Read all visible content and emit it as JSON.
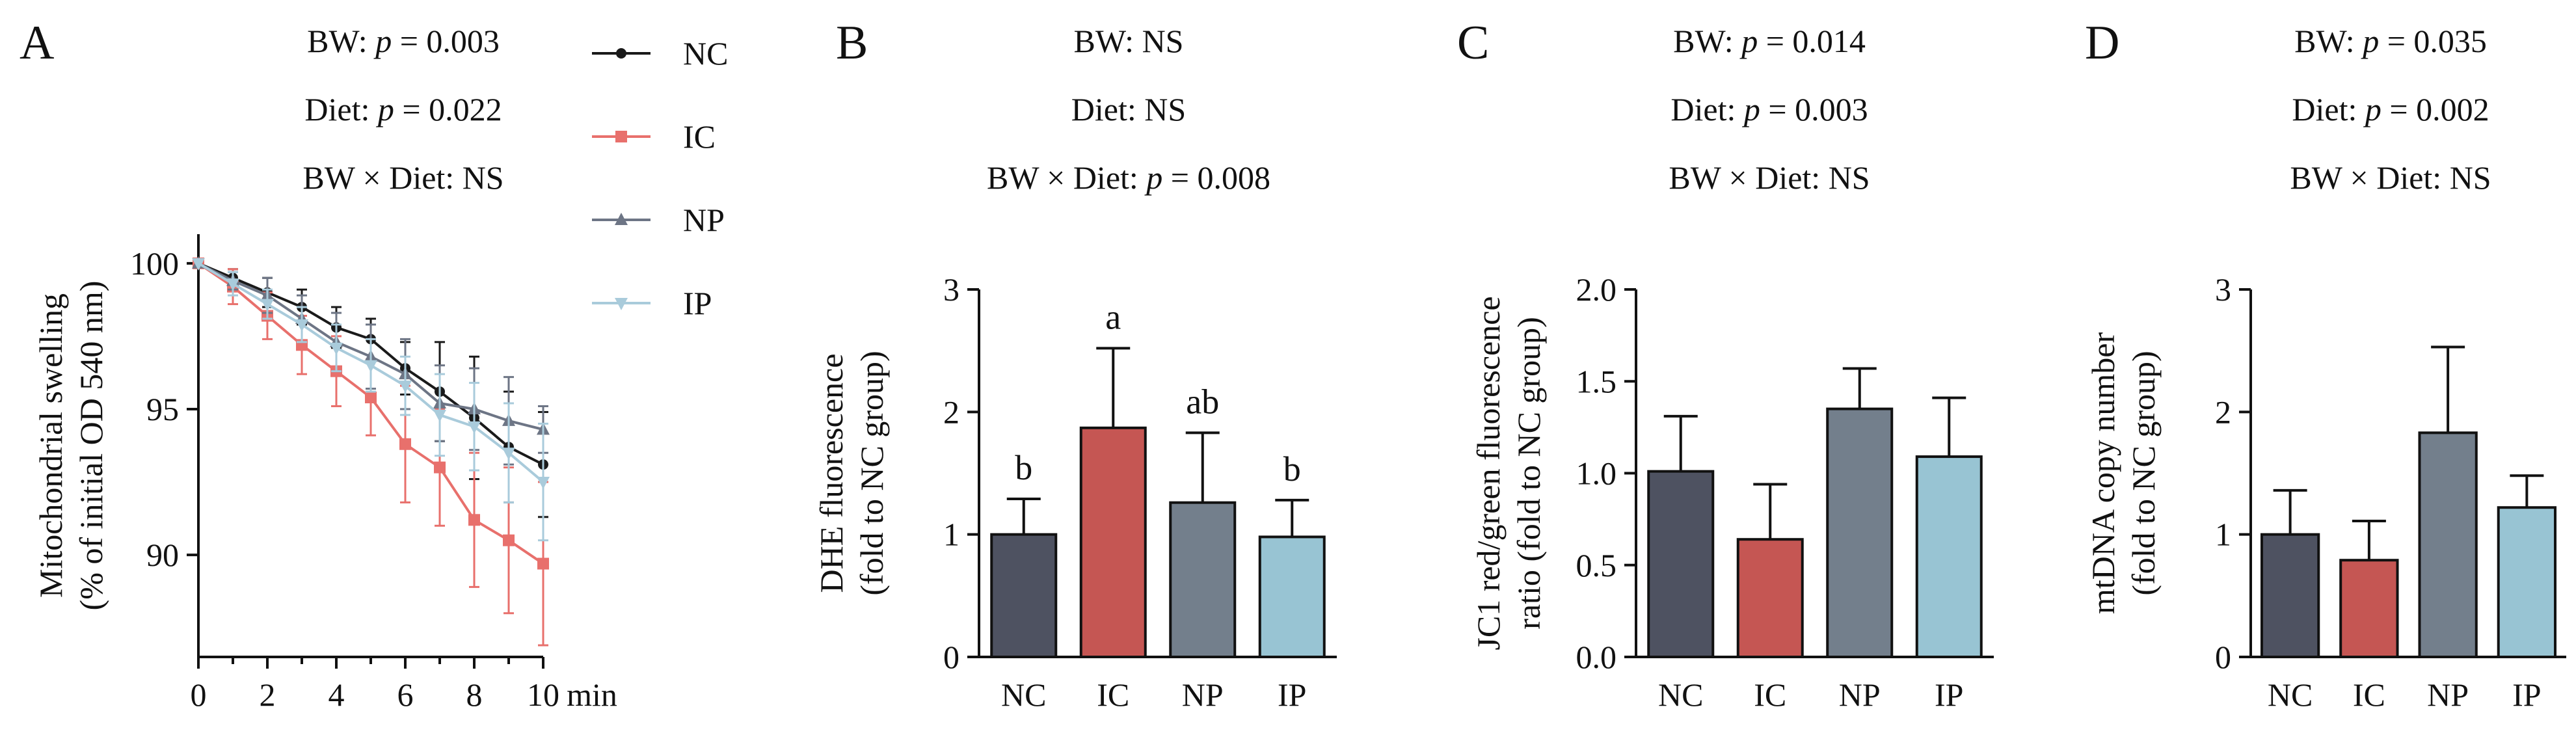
{
  "colors": {
    "NC": "#4e5261",
    "IC": "#c55653",
    "NP": "#737f8c",
    "IP": "#98c4d3",
    "NC_line": "#1a1a1a",
    "IC_line": "#e8706c",
    "NP_line": "#6d7585",
    "IP_line": "#a9cbdb",
    "axis": "#111111"
  },
  "legend": [
    "NC",
    "IC",
    "NP",
    "IP"
  ],
  "chart_data": [
    {
      "panel": "A",
      "type": "line",
      "stats": [
        "BW: p = 0.003",
        "Diet: p = 0.022",
        "BW × Diet: NS"
      ],
      "ylabel": "Mitochondrial swelling",
      "ylabel2": "(% of initial OD 540 nm)",
      "xlabel": "min",
      "xlim": [
        0,
        10
      ],
      "ylim": [
        86.5,
        101
      ],
      "yticks": [
        90,
        95,
        100
      ],
      "xticks": [
        0,
        2,
        4,
        6,
        8,
        10
      ],
      "x": [
        0,
        1,
        2,
        3,
        4,
        5,
        6,
        7,
        8,
        9,
        10
      ],
      "series": [
        {
          "name": "NC",
          "marker": "circle",
          "values": [
            100,
            99.5,
            99.0,
            98.5,
            97.8,
            97.4,
            96.4,
            95.6,
            94.7,
            93.7,
            93.1
          ],
          "errors": [
            0,
            0.3,
            0.5,
            0.6,
            0.7,
            0.7,
            0.9,
            1.7,
            2.1,
            1.9,
            1.8
          ]
        },
        {
          "name": "IC",
          "marker": "square",
          "values": [
            100,
            99.2,
            98.2,
            97.2,
            96.3,
            95.4,
            93.8,
            93.0,
            91.2,
            90.5,
            89.7
          ],
          "errors": [
            0,
            0.6,
            0.8,
            1.0,
            1.2,
            1.3,
            2.0,
            2.0,
            2.3,
            2.5,
            2.8
          ]
        },
        {
          "name": "NP",
          "marker": "triangle-up",
          "values": [
            100,
            99.4,
            98.9,
            98.1,
            97.3,
            96.8,
            96.2,
            95.2,
            95.0,
            94.6,
            94.3
          ],
          "errors": [
            0,
            0.3,
            0.6,
            0.8,
            1.0,
            1.1,
            1.2,
            1.3,
            1.4,
            1.5,
            0.8
          ]
        },
        {
          "name": "IP",
          "marker": "triangle-down",
          "values": [
            100,
            99.3,
            98.6,
            97.9,
            97.1,
            96.5,
            95.8,
            94.8,
            94.4,
            93.5,
            92.5
          ],
          "errors": [
            0,
            0.4,
            0.5,
            0.6,
            0.8,
            0.9,
            1.0,
            1.4,
            1.5,
            1.7,
            2.0
          ]
        }
      ]
    },
    {
      "panel": "B",
      "type": "bar",
      "stats": [
        "BW: NS",
        "Diet: NS",
        "BW × Diet: p = 0.008"
      ],
      "ylabel": "DHE fluorescence",
      "ylabel2": "(fold to NC group)",
      "categories": [
        "NC",
        "IC",
        "NP",
        "IP"
      ],
      "values": [
        1.0,
        1.87,
        1.26,
        0.98
      ],
      "errors": [
        0.29,
        0.65,
        0.57,
        0.3
      ],
      "labels": [
        "b",
        "a",
        "ab",
        "b"
      ],
      "ylim": [
        0,
        3
      ],
      "yticks": [
        "0",
        "1",
        "2",
        "3"
      ]
    },
    {
      "panel": "C",
      "type": "bar",
      "stats": [
        "BW: p = 0.014",
        "Diet: p = 0.003",
        "BW × Diet: NS"
      ],
      "ylabel": "JC1 red/green fluorescence",
      "ylabel2": "ratio (fold to NC group)",
      "categories": [
        "NC",
        "IC",
        "NP",
        "IP"
      ],
      "values": [
        1.01,
        0.64,
        1.35,
        1.09
      ],
      "errors": [
        0.3,
        0.3,
        0.22,
        0.32
      ],
      "labels": [
        "",
        "",
        "",
        ""
      ],
      "ylim": [
        0,
        2
      ],
      "yticks": [
        "0.0",
        "0.5",
        "1.0",
        "1.5",
        "2.0"
      ]
    },
    {
      "panel": "D",
      "type": "bar",
      "stats": [
        "BW: p = 0.035",
        "Diet: p = 0.002",
        "BW × Diet: NS"
      ],
      "ylabel": "mtDNA copy number",
      "ylabel2": "(fold to NC group)",
      "categories": [
        "NC",
        "IC",
        "NP",
        "IP"
      ],
      "values": [
        1.0,
        0.79,
        1.83,
        1.22
      ],
      "errors": [
        0.36,
        0.32,
        0.7,
        0.26
      ],
      "labels": [
        "",
        "",
        "",
        ""
      ],
      "ylim": [
        0,
        3
      ],
      "yticks": [
        "0",
        "1",
        "2",
        "3"
      ]
    }
  ]
}
